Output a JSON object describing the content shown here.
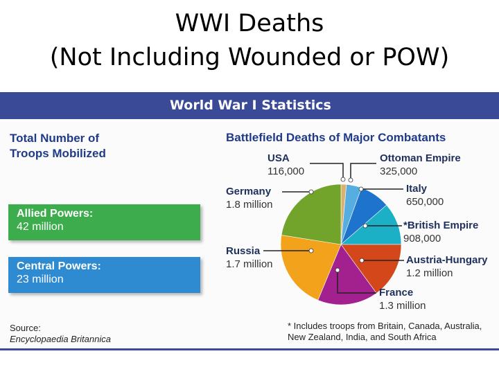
{
  "slide": {
    "title_line1": "WWI Deaths",
    "title_line2": "(Not Including Wounded or POW)"
  },
  "panel": {
    "banner_title": "World War I Statistics",
    "troops_heading_line1": "Total Number of",
    "troops_heading_line2": "Troops Mobilized",
    "allied": {
      "label": "Allied Powers:",
      "value": "42 million"
    },
    "central": {
      "label": "Central Powers:",
      "value": "23 million"
    },
    "source_label": "Source:",
    "source_book": "Encyclopaedia Britannica",
    "footnote_line1": "* Includes troops from Britain, Canada, Australia,",
    "footnote_line2": "New Zealand, India, and South Africa"
  },
  "colors": {
    "banner": "#3b4a97",
    "allied_box": "#3cac4c",
    "central_box": "#2f8bd1",
    "heading_text": "#1f3a88"
  },
  "chart_data": {
    "type": "pie",
    "title": "Battlefield Deaths of Major Combatants",
    "slices": [
      {
        "label": "USA",
        "value_text": "116,000",
        "value": 116000,
        "color": "#d9b36c"
      },
      {
        "label": "Ottoman Empire",
        "value_text": "325,000",
        "value": 325000,
        "color": "#56aee0"
      },
      {
        "label": "Italy",
        "value_text": "650,000",
        "value": 650000,
        "color": "#1e73cc"
      },
      {
        "label": "*British Empire",
        "value_text": "908,000",
        "value": 908000,
        "color": "#1cb0c7"
      },
      {
        "label": "Austria-Hungary",
        "value_text": "1.2 million",
        "value": 1200000,
        "color": "#d4471a"
      },
      {
        "label": "France",
        "value_text": "1.3 million",
        "value": 1300000,
        "color": "#a3208f"
      },
      {
        "label": "Russia",
        "value_text": "1.7 million",
        "value": 1700000,
        "color": "#f3a21c"
      },
      {
        "label": "Germany",
        "value_text": "1.8 million",
        "value": 1800000,
        "color": "#72a32a"
      }
    ]
  }
}
